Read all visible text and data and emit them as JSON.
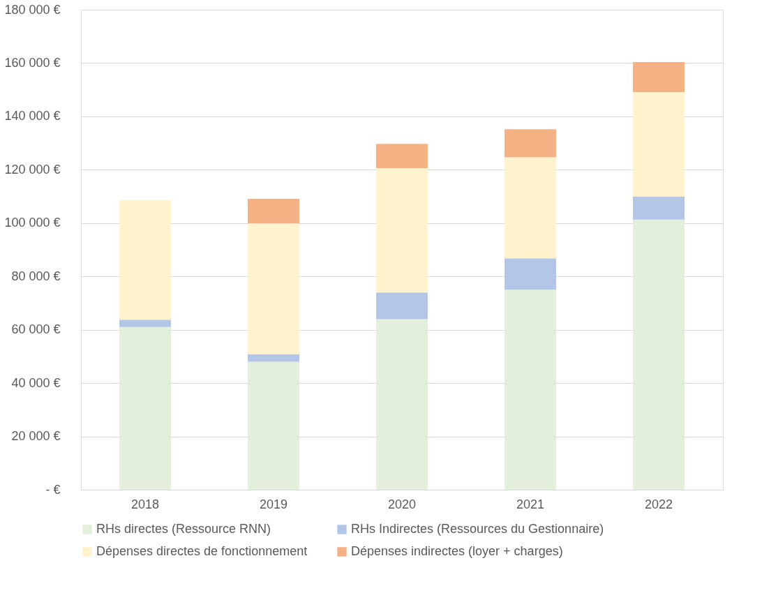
{
  "chart_data": {
    "type": "bar",
    "stacked": true,
    "categories": [
      "2018",
      "2019",
      "2020",
      "2021",
      "2022"
    ],
    "series": [
      {
        "name": "RHs directes (Ressource RNN)",
        "color": "#e2efda",
        "values": [
          61000,
          48000,
          64000,
          75000,
          101300
        ]
      },
      {
        "name": "RHs Indirectes (Ressources du Gestionnaire)",
        "color": "#b4c6e7",
        "values": [
          2800,
          2800,
          10000,
          11800,
          8600
        ]
      },
      {
        "name": "Dépenses directes de fonctionnement",
        "color": "#fff2cc",
        "values": [
          44800,
          49100,
          46600,
          37900,
          39200
        ]
      },
      {
        "name": "Dépenses indirectes (loyer + charges)",
        "color": "#f4b183",
        "values": [
          null,
          9200,
          9100,
          10500,
          11300
        ]
      }
    ],
    "ylim": [
      0,
      180000
    ],
    "yticks": [
      {
        "value": 0,
        "label": "-  €"
      },
      {
        "value": 20000,
        "label": "20 000 €"
      },
      {
        "value": 40000,
        "label": "40 000 €"
      },
      {
        "value": 60000,
        "label": "60 000 €"
      },
      {
        "value": 80000,
        "label": "80 000 €"
      },
      {
        "value": 100000,
        "label": "100 000 €"
      },
      {
        "value": 120000,
        "label": "120 000 €"
      },
      {
        "value": 140000,
        "label": "140 000 €"
      },
      {
        "value": 160000,
        "label": "160 000 €"
      },
      {
        "value": 180000,
        "label": "180 000 €"
      }
    ],
    "grid": "y",
    "legend": "bottom"
  }
}
